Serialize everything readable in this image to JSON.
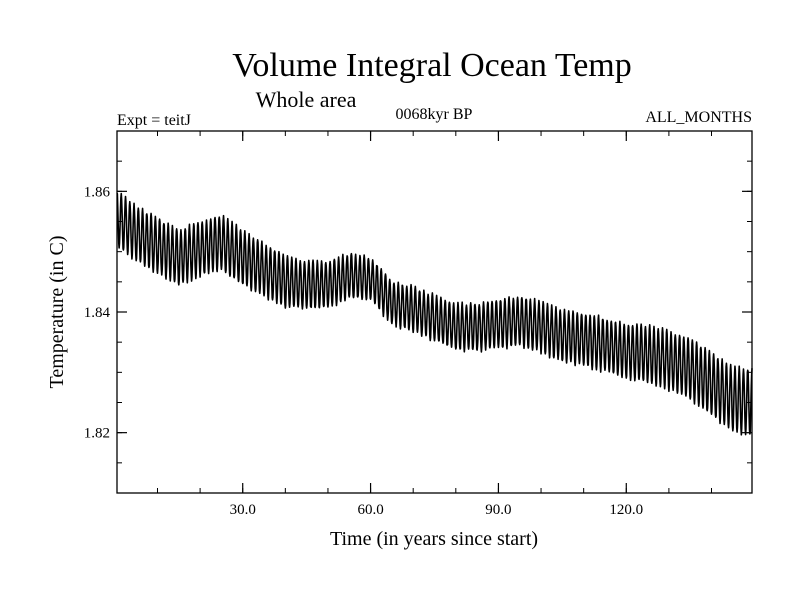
{
  "chart_data": {
    "type": "line",
    "title": "Volume Integral Ocean Temp",
    "subtitle": "Whole area",
    "header_left": "Expt = teitJ",
    "header_center": "0068kyr BP",
    "header_right": "ALL_MONTHS",
    "xlabel": "Time (in years since start)",
    "ylabel": "Temperature (in C)",
    "xlim": [
      0.5,
      149.5
    ],
    "ylim": [
      1.81,
      1.87
    ],
    "x_ticks": [
      {
        "value": 30,
        "label": "30.0"
      },
      {
        "value": 60,
        "label": "60.0"
      },
      {
        "value": 90,
        "label": "90.0"
      },
      {
        "value": 120,
        "label": "120.0"
      }
    ],
    "y_ticks": [
      {
        "value": 1.82,
        "label": "1.82"
      },
      {
        "value": 1.84,
        "label": "1.84"
      },
      {
        "value": 1.86,
        "label": "1.86"
      }
    ],
    "minor_x_step": 10,
    "minor_y_step": 0.005,
    "series": [
      {
        "name": "Volume integral ocean temperature",
        "sampling": "monthly, annual cycle",
        "color": "#000000",
        "annual_mean_points": [
          {
            "x": 0.5,
            "y": 1.8555
          },
          {
            "x": 5,
            "y": 1.853
          },
          {
            "x": 10,
            "y": 1.851
          },
          {
            "x": 15,
            "y": 1.849
          },
          {
            "x": 20,
            "y": 1.8505
          },
          {
            "x": 25,
            "y": 1.8515
          },
          {
            "x": 30,
            "y": 1.849
          },
          {
            "x": 35,
            "y": 1.847
          },
          {
            "x": 40,
            "y": 1.845
          },
          {
            "x": 45,
            "y": 1.8445
          },
          {
            "x": 50,
            "y": 1.8445
          },
          {
            "x": 55,
            "y": 1.846
          },
          {
            "x": 60,
            "y": 1.8455
          },
          {
            "x": 65,
            "y": 1.8415
          },
          {
            "x": 70,
            "y": 1.8405
          },
          {
            "x": 75,
            "y": 1.839
          },
          {
            "x": 80,
            "y": 1.8375
          },
          {
            "x": 85,
            "y": 1.8375
          },
          {
            "x": 90,
            "y": 1.838
          },
          {
            "x": 95,
            "y": 1.8385
          },
          {
            "x": 100,
            "y": 1.8375
          },
          {
            "x": 105,
            "y": 1.836
          },
          {
            "x": 110,
            "y": 1.8355
          },
          {
            "x": 115,
            "y": 1.8345
          },
          {
            "x": 120,
            "y": 1.8335
          },
          {
            "x": 125,
            "y": 1.833
          },
          {
            "x": 130,
            "y": 1.832
          },
          {
            "x": 135,
            "y": 1.8305
          },
          {
            "x": 140,
            "y": 1.828
          },
          {
            "x": 145,
            "y": 1.8255
          },
          {
            "x": 149.5,
            "y": 1.825
          }
        ],
        "seasonal_amplitude": [
          {
            "x": 0.5,
            "a": 0.0045
          },
          {
            "x": 30,
            "a": 0.0045
          },
          {
            "x": 60,
            "a": 0.0035
          },
          {
            "x": 90,
            "a": 0.004
          },
          {
            "x": 120,
            "a": 0.0045
          },
          {
            "x": 149.5,
            "a": 0.0055
          }
        ]
      }
    ]
  }
}
